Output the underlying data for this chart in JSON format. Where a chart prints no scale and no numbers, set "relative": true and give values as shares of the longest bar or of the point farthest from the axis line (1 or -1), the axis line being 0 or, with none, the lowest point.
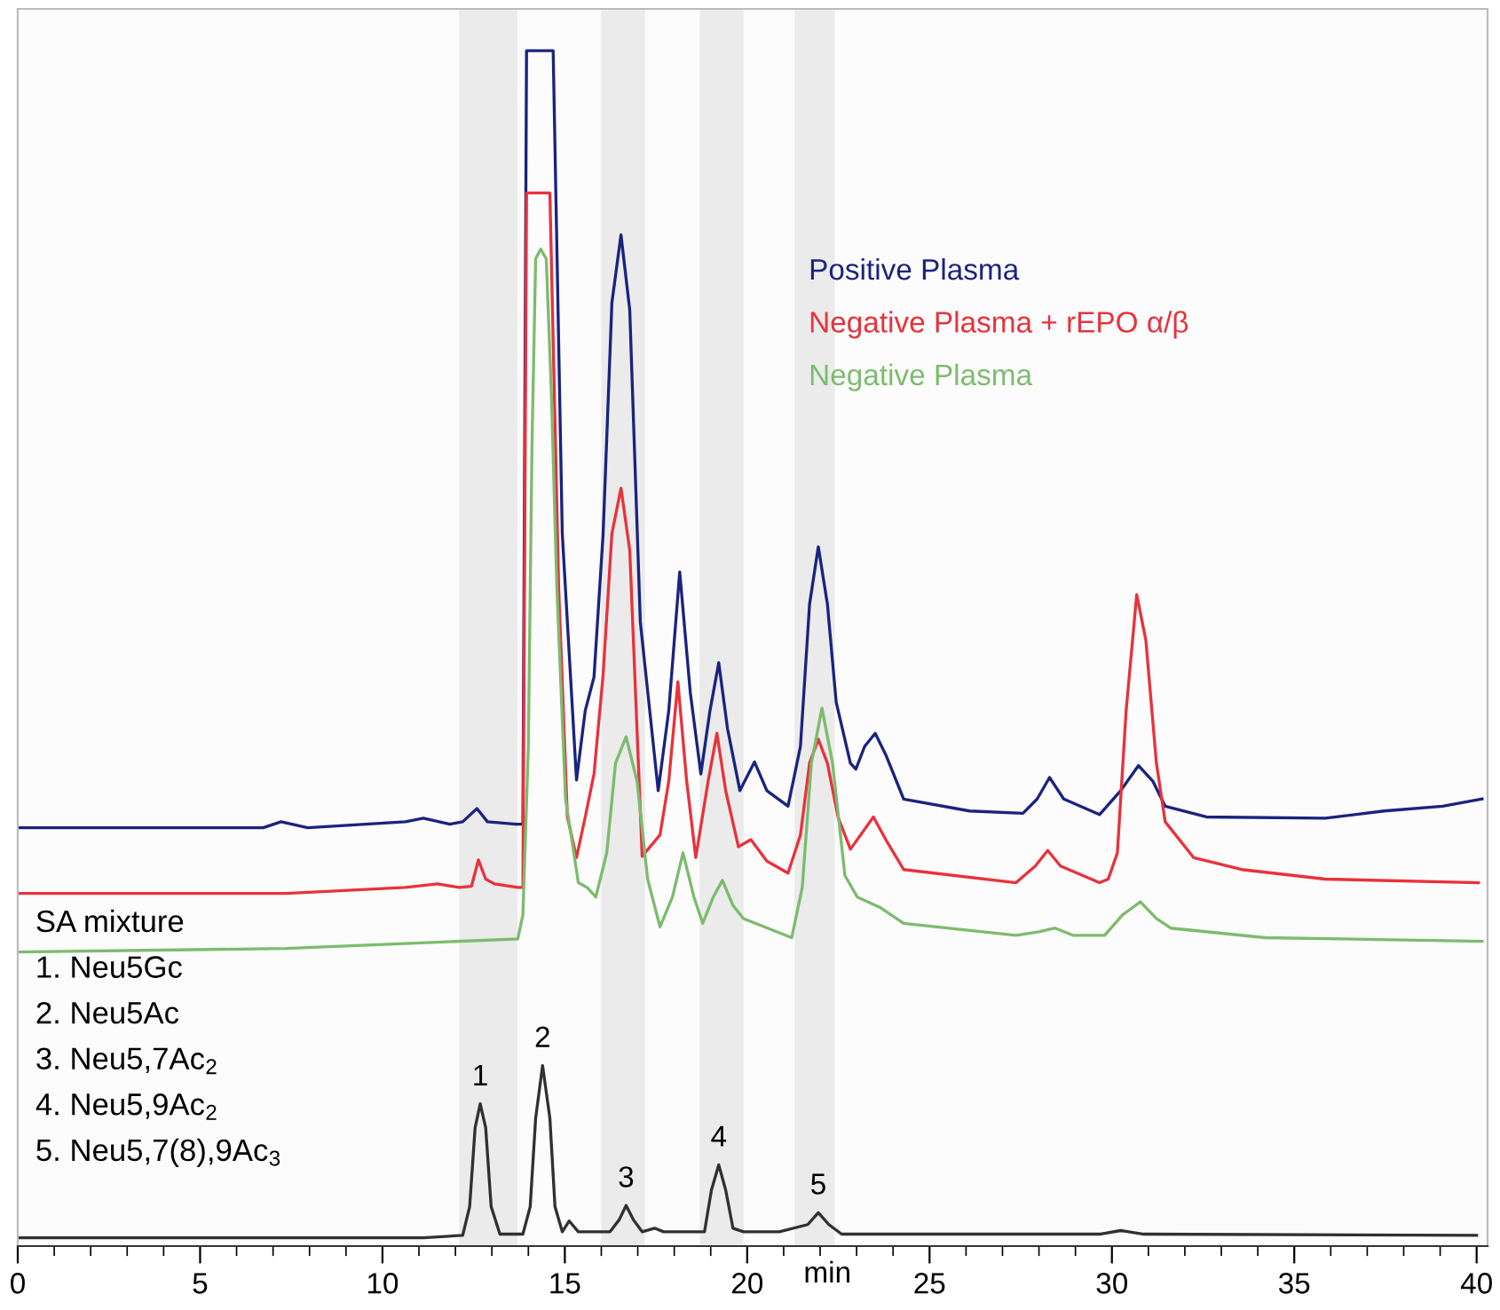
{
  "chart_data": {
    "type": "line",
    "relative": true,
    "xlabel": "min",
    "xlim": [
      0,
      40.3
    ],
    "xticks": [
      0,
      5,
      10,
      15,
      20,
      25,
      30,
      35,
      40
    ],
    "grid": false,
    "legend": "top",
    "marker": "none",
    "line_style": "solid",
    "series": [
      {
        "name": "Positive Plasma",
        "color": "#1a237e",
        "x": [
          0,
          6.73,
          7.22,
          7.95,
          10.63,
          11.12,
          11.85,
          12.2,
          12.59,
          12.88,
          13.66,
          13.85,
          13.95,
          14.68,
          14.93,
          15.32,
          15.56,
          15.8,
          16.05,
          16.29,
          16.54,
          16.78,
          17.07,
          17.56,
          17.85,
          18.15,
          18.44,
          18.73,
          18.98,
          19.22,
          19.46,
          19.8,
          20.2,
          20.54,
          21.12,
          21.46,
          21.71,
          21.95,
          22.2,
          22.44,
          22.83,
          22.98,
          23.22,
          23.51,
          23.8,
          24.29,
          26.1,
          27.56,
          27.95,
          28.29,
          28.68,
          29.66,
          30.24,
          30.73,
          31.12,
          31.46,
          32.59,
          35.85,
          37.46,
          39.07,
          40.15
        ],
        "values": [
          0.35,
          0.35,
          0.355,
          0.35,
          0.355,
          0.358,
          0.353,
          0.355,
          0.366,
          0.355,
          0.353,
          0.353,
          1.0,
          1.0,
          0.596,
          0.39,
          0.448,
          0.476,
          0.596,
          0.789,
          0.846,
          0.783,
          0.522,
          0.381,
          0.448,
          0.564,
          0.463,
          0.395,
          0.448,
          0.488,
          0.433,
          0.381,
          0.405,
          0.381,
          0.368,
          0.418,
          0.537,
          0.585,
          0.537,
          0.455,
          0.404,
          0.399,
          0.418,
          0.429,
          0.411,
          0.374,
          0.364,
          0.362,
          0.374,
          0.392,
          0.374,
          0.361,
          0.381,
          0.402,
          0.389,
          0.368,
          0.359,
          0.358,
          0.364,
          0.368,
          0.374
        ]
      },
      {
        "name": "Negative Plasma + rEPO α/β",
        "color": "#e8323c",
        "x": [
          0,
          7.37,
          10.63,
          11.51,
          12.1,
          12.44,
          12.63,
          12.83,
          13.07,
          13.71,
          13.85,
          13.95,
          14.59,
          14.83,
          15.07,
          15.32,
          15.56,
          15.8,
          16.05,
          16.29,
          16.54,
          16.78,
          17.12,
          17.61,
          17.85,
          18.1,
          18.34,
          18.59,
          18.93,
          19.17,
          19.41,
          19.76,
          20.1,
          20.54,
          21.12,
          21.46,
          21.71,
          21.95,
          22.2,
          22.49,
          22.83,
          23.46,
          23.8,
          24.29,
          27.37,
          27.9,
          28.24,
          28.59,
          29.66,
          29.9,
          30.15,
          30.39,
          30.68,
          30.93,
          31.22,
          31.46,
          32.24,
          33.56,
          35.85,
          40.05
        ],
        "values": [
          0.295,
          0.295,
          0.3,
          0.303,
          0.3,
          0.301,
          0.323,
          0.307,
          0.303,
          0.3,
          0.3,
          0.881,
          0.881,
          0.552,
          0.359,
          0.325,
          0.359,
          0.395,
          0.478,
          0.596,
          0.634,
          0.582,
          0.326,
          0.344,
          0.389,
          0.472,
          0.389,
          0.325,
          0.389,
          0.429,
          0.381,
          0.334,
          0.34,
          0.322,
          0.312,
          0.344,
          0.404,
          0.424,
          0.404,
          0.359,
          0.332,
          0.359,
          0.34,
          0.315,
          0.304,
          0.318,
          0.331,
          0.318,
          0.304,
          0.307,
          0.329,
          0.448,
          0.545,
          0.507,
          0.404,
          0.355,
          0.325,
          0.315,
          0.307,
          0.304
        ]
      },
      {
        "name": "Negative Plasma",
        "color": "#7dbb6e",
        "x": [
          0,
          7.37,
          13.71,
          13.85,
          14.0,
          14.1,
          14.2,
          14.34,
          14.49,
          14.63,
          14.78,
          15.02,
          15.37,
          15.61,
          15.85,
          16.15,
          16.39,
          16.68,
          16.98,
          17.27,
          17.61,
          17.95,
          18.24,
          18.54,
          18.78,
          19.07,
          19.32,
          19.61,
          19.9,
          21.22,
          21.51,
          21.76,
          22.05,
          22.34,
          22.68,
          23.02,
          23.66,
          24.29,
          27.37,
          28.0,
          28.44,
          28.93,
          29.8,
          30.29,
          30.78,
          31.22,
          31.61,
          34.2,
          40.15
        ],
        "values": [
          0.246,
          0.249,
          0.257,
          0.277,
          0.418,
          0.671,
          0.826,
          0.834,
          0.826,
          0.715,
          0.552,
          0.374,
          0.304,
          0.3,
          0.292,
          0.329,
          0.404,
          0.426,
          0.389,
          0.307,
          0.267,
          0.292,
          0.329,
          0.292,
          0.27,
          0.292,
          0.306,
          0.285,
          0.274,
          0.258,
          0.3,
          0.404,
          0.45,
          0.404,
          0.31,
          0.292,
          0.283,
          0.27,
          0.26,
          0.263,
          0.266,
          0.26,
          0.26,
          0.277,
          0.288,
          0.274,
          0.266,
          0.258,
          0.255
        ]
      },
      {
        "color": "#303030",
        "x": [
          0,
          11.12,
          12.2,
          12.39,
          12.54,
          12.68,
          12.83,
          12.98,
          13.22,
          13.85,
          14.05,
          14.2,
          14.39,
          14.59,
          14.73,
          14.93,
          15.12,
          15.37,
          16.24,
          16.49,
          16.68,
          16.88,
          17.12,
          17.46,
          17.71,
          18.83,
          19.02,
          19.22,
          19.41,
          19.61,
          19.9,
          20.88,
          21.66,
          21.95,
          22.24,
          22.59,
          29.66,
          30.24,
          30.88,
          40.0
        ],
        "values": [
          0.007,
          0.007,
          0.009,
          0.033,
          0.099,
          0.119,
          0.099,
          0.033,
          0.01,
          0.01,
          0.033,
          0.107,
          0.151,
          0.107,
          0.033,
          0.012,
          0.021,
          0.012,
          0.012,
          0.022,
          0.034,
          0.022,
          0.012,
          0.015,
          0.012,
          0.012,
          0.047,
          0.068,
          0.047,
          0.015,
          0.012,
          0.012,
          0.018,
          0.028,
          0.018,
          0.01,
          0.01,
          0.013,
          0.01,
          0.009
        ]
      }
    ],
    "bands": [
      {
        "axis": "x",
        "from": 12.1,
        "to": 13.7,
        "color": "#ebebeb"
      },
      {
        "axis": "x",
        "from": 16.0,
        "to": 17.2,
        "color": "#ebebeb"
      },
      {
        "axis": "x",
        "from": 18.7,
        "to": 19.9,
        "color": "#ebebeb"
      },
      {
        "axis": "x",
        "from": 21.3,
        "to": 22.4,
        "color": "#ebebeb"
      }
    ],
    "annotations": [
      "SA mixture",
      "1. Neu5Gc",
      "2. Neu5Ac",
      "3. Neu5,7Ac$_{2}$",
      "4. Neu5,9Ac$_{2}$",
      "5. Neu5,7(8),9Ac$_{3}$",
      {
        "text": "1",
        "x": 12.68,
        "y": 0.119
      },
      {
        "text": "2",
        "x": 14.39,
        "y": 0.151
      },
      {
        "text": "3",
        "x": 16.68,
        "y": 0.034
      },
      {
        "text": "4",
        "x": 19.22,
        "y": 0.068
      },
      {
        "text": "5",
        "x": 21.95,
        "y": 0.028
      }
    ]
  }
}
